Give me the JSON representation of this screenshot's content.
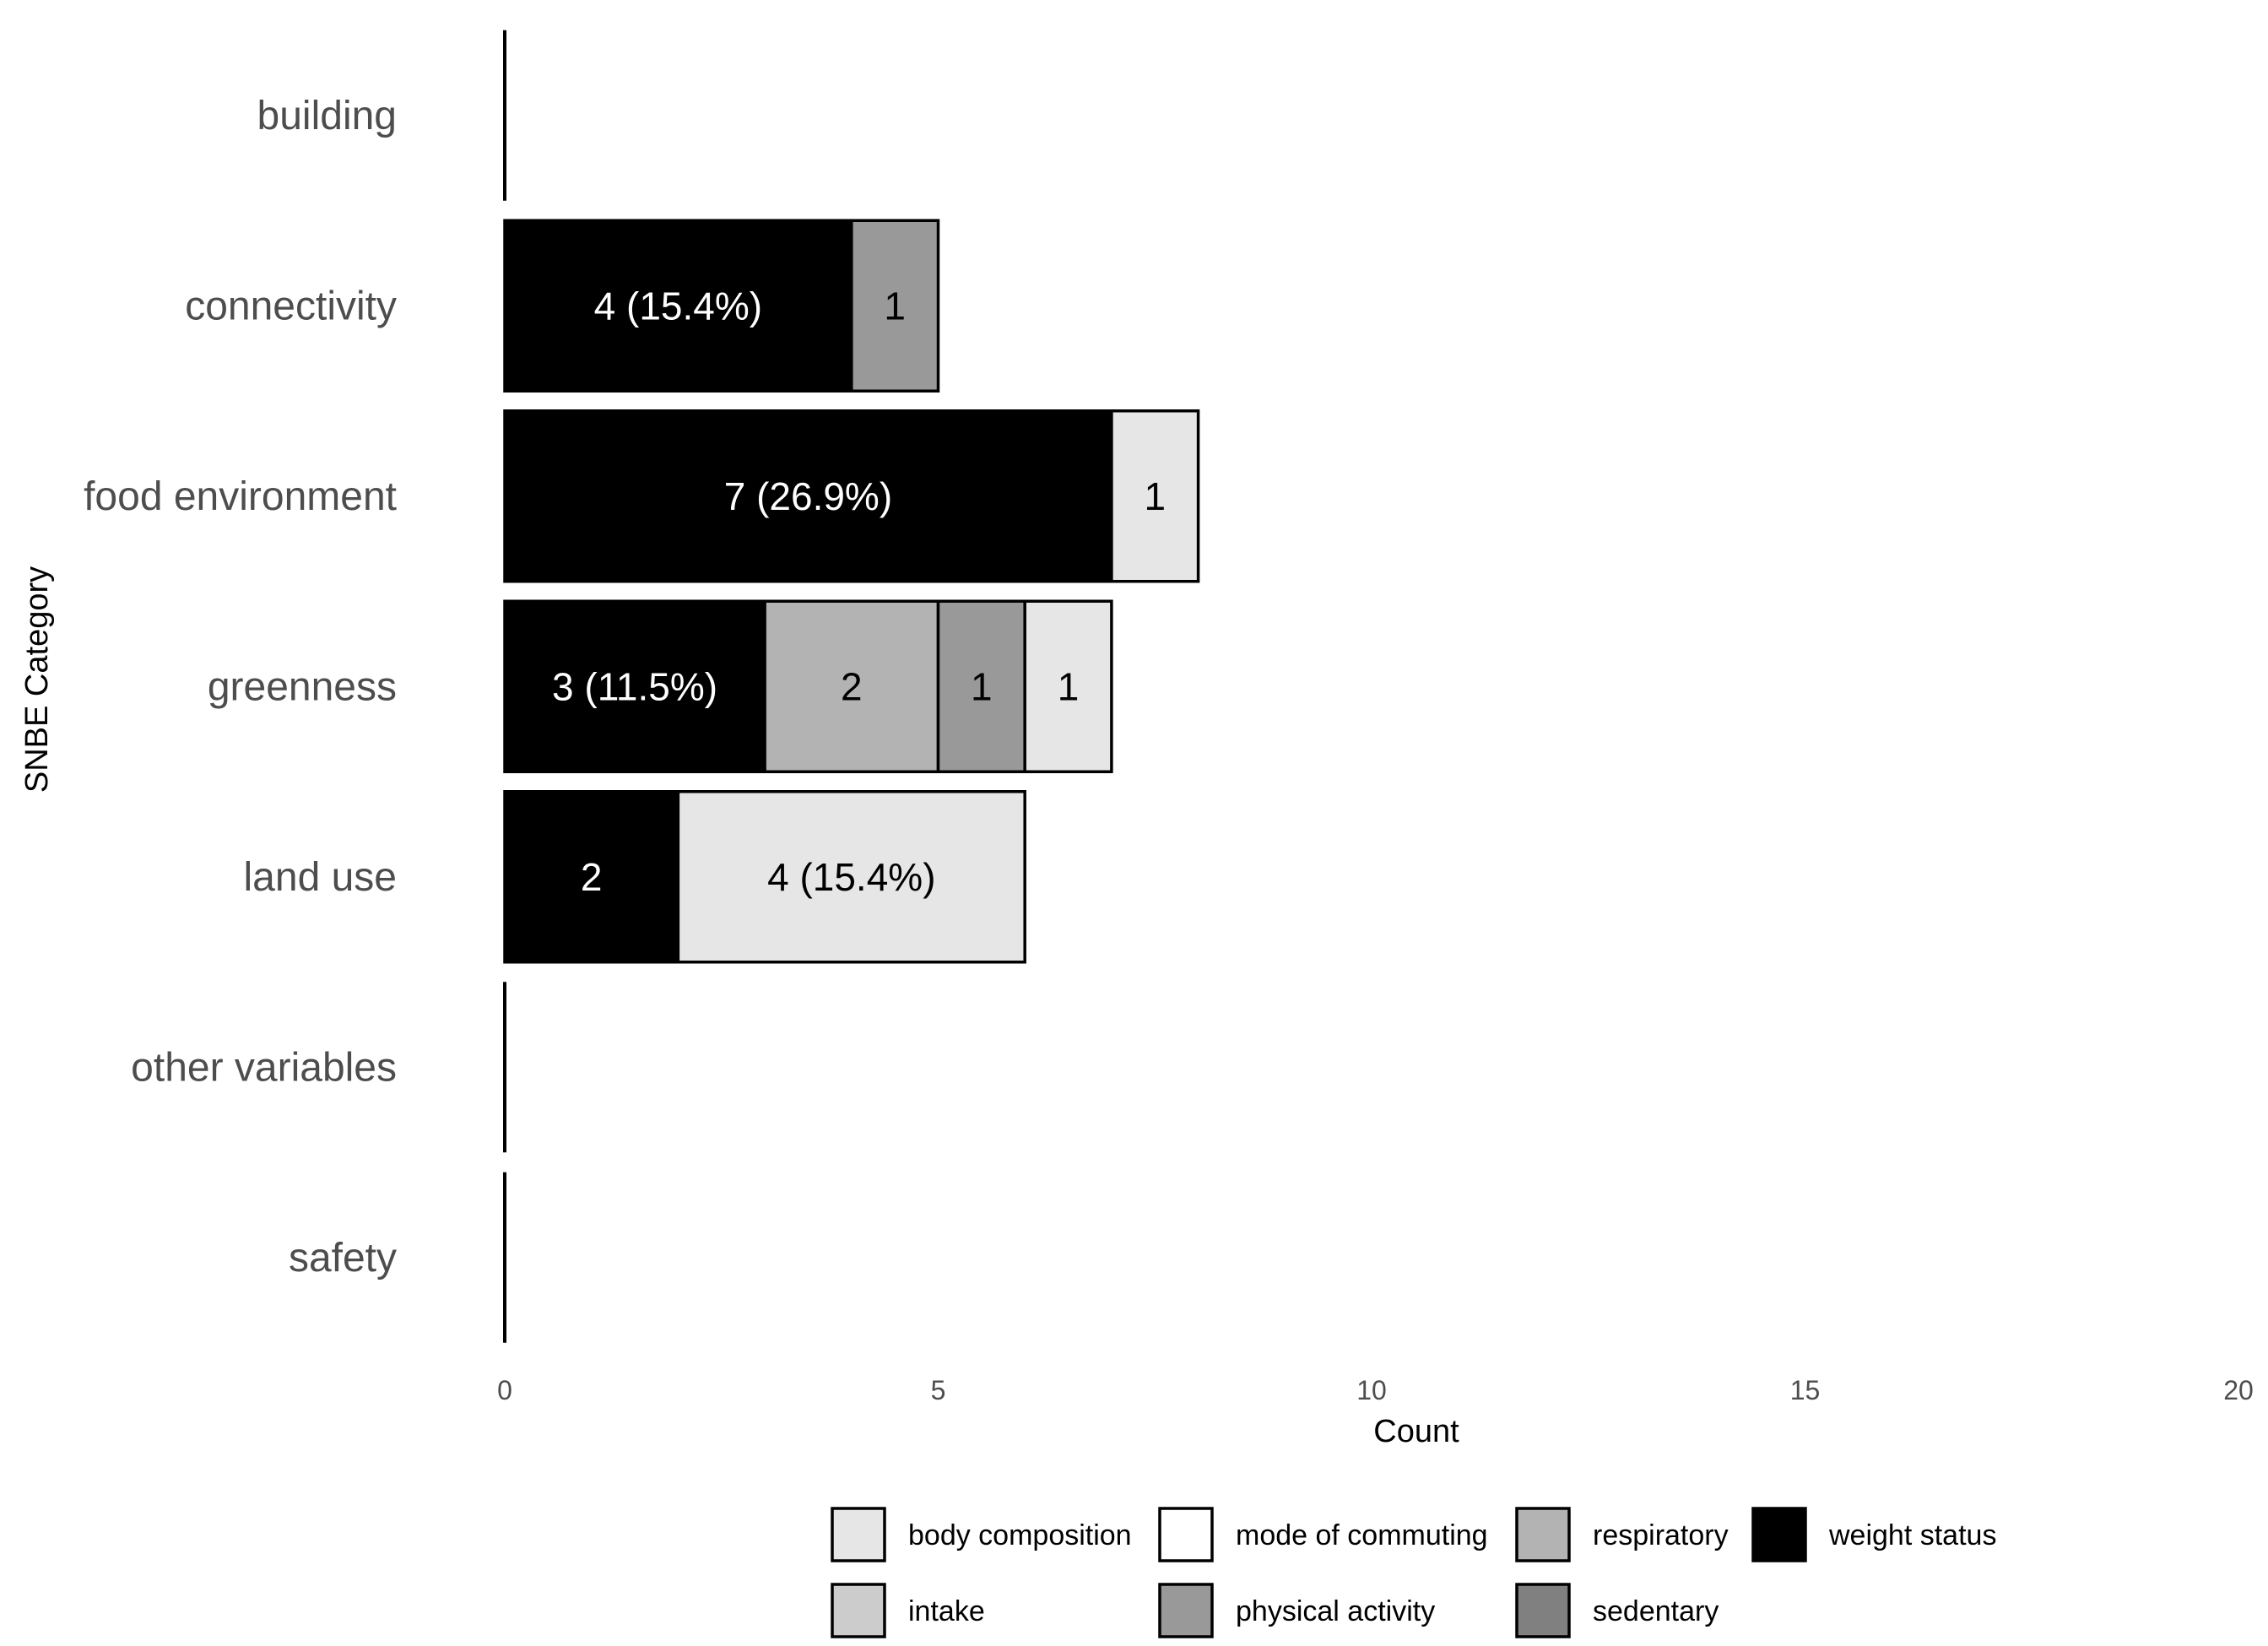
{
  "chart_data": {
    "type": "bar",
    "orientation": "horizontal",
    "stacked": true,
    "xlabel": "Count",
    "ylabel": "SNBE Category",
    "xlim": [
      0,
      20
    ],
    "xticks": [
      0,
      5,
      10,
      15,
      20
    ],
    "grid": false,
    "legend_position": "bottom",
    "categories": [
      "building",
      "connectivity",
      "food environment",
      "greenness",
      "land use",
      "other variables",
      "safety"
    ],
    "legend": [
      {
        "name": "body composition",
        "color": "#e6e6e6"
      },
      {
        "name": "mode of commuting",
        "color": "#ffffff"
      },
      {
        "name": "respiratory",
        "color": "#b3b3b3"
      },
      {
        "name": "weight status",
        "color": "#000000"
      },
      {
        "name": "intake",
        "color": "#cccccc"
      },
      {
        "name": "physical activity",
        "color": "#999999"
      },
      {
        "name": "sedentary",
        "color": "#808080"
      }
    ],
    "bars": [
      {
        "category": "building",
        "segments": []
      },
      {
        "category": "connectivity",
        "segments": [
          {
            "series": "weight status",
            "value": 4,
            "label": "4 (15.4%)"
          },
          {
            "series": "physical activity",
            "value": 1,
            "label": "1"
          }
        ]
      },
      {
        "category": "food environment",
        "segments": [
          {
            "series": "weight status",
            "value": 7,
            "label": "7 (26.9%)"
          },
          {
            "series": "body composition",
            "value": 1,
            "label": "1"
          }
        ]
      },
      {
        "category": "greenness",
        "segments": [
          {
            "series": "weight status",
            "value": 3,
            "label": "3 (11.5%)"
          },
          {
            "series": "respiratory",
            "value": 2,
            "label": "2"
          },
          {
            "series": "physical activity",
            "value": 1,
            "label": "1"
          },
          {
            "series": "body composition",
            "value": 1,
            "label": "1"
          }
        ]
      },
      {
        "category": "land use",
        "segments": [
          {
            "series": "weight status",
            "value": 2,
            "label": "2"
          },
          {
            "series": "body composition",
            "value": 4,
            "label": "4 (15.4%)"
          }
        ]
      },
      {
        "category": "other variables",
        "segments": []
      },
      {
        "category": "safety",
        "segments": []
      }
    ]
  }
}
